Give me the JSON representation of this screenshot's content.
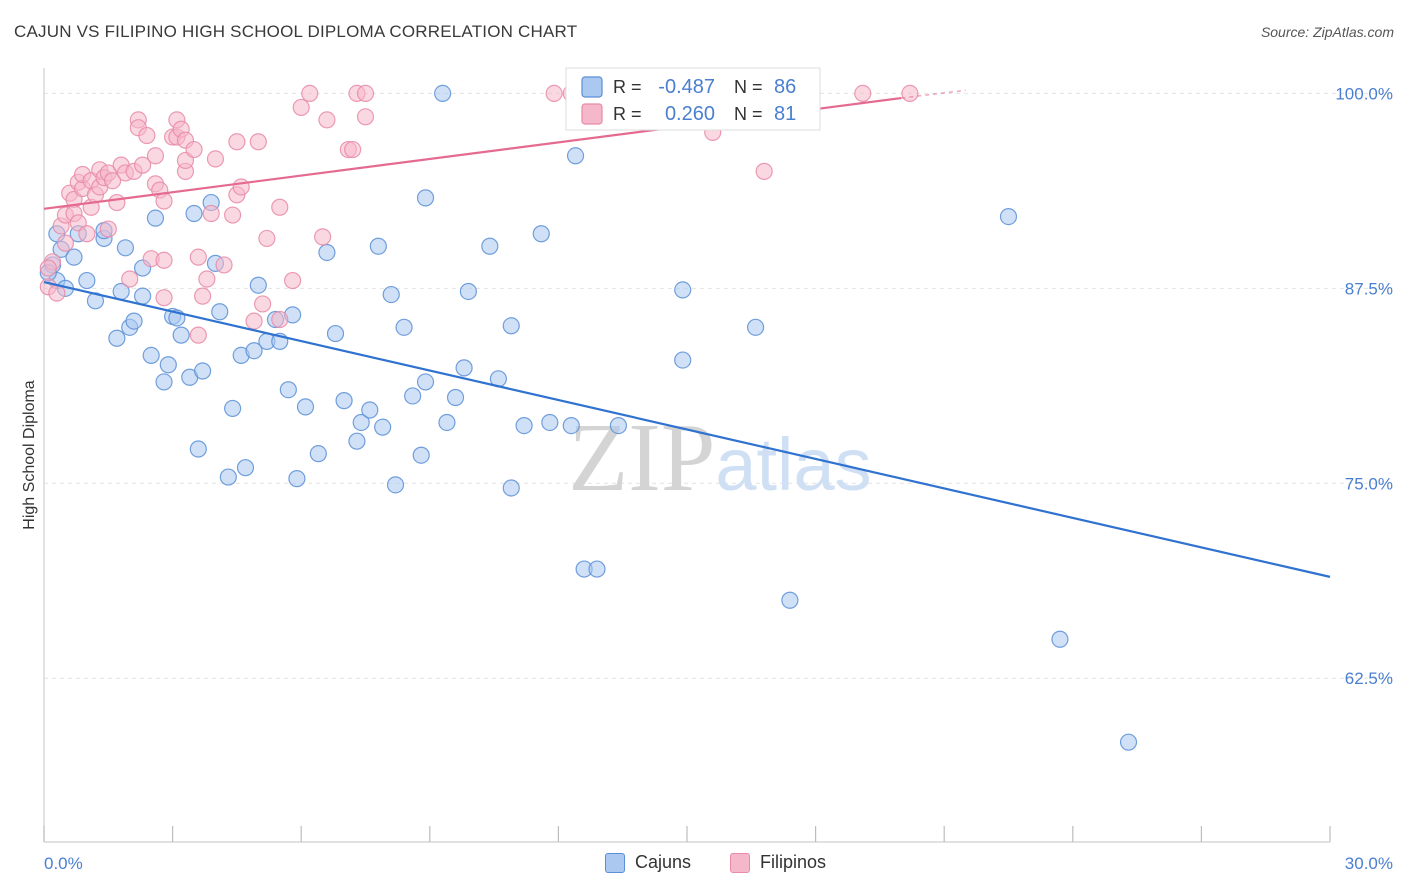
{
  "chart_data": {
    "type": "scatter",
    "title": "CAJUN VS FILIPINO HIGH SCHOOL DIPLOMA CORRELATION CHART",
    "source": "Source: ZipAtlas.com",
    "xlabel": "",
    "ylabel": "High School Diploma",
    "xlim": [
      0,
      30
    ],
    "ylim": [
      52.0,
      101.5
    ],
    "x_tick_labels": [
      "0.0%",
      "30.0%"
    ],
    "y_ticks": [
      62.5,
      75.0,
      87.5,
      100.0
    ],
    "y_tick_labels": [
      "62.5%",
      "75.0%",
      "87.5%",
      "100.0%"
    ],
    "watermark": "ZIPatlas",
    "legend": {
      "r_label": "R =",
      "n_label": "N =",
      "rows": [
        {
          "r": "-0.487",
          "n": "86"
        },
        {
          "r": "0.260",
          "n": "81"
        }
      ]
    },
    "colors": {
      "cajun_fill": "#aac8f0",
      "cajun_stroke": "#5a8fd6",
      "cajun_line": "#2f72cf",
      "filipino_fill": "#f5b8cb",
      "filipino_stroke": "#e88aa8",
      "filipino_line": "#e46a90",
      "tick_label": "#4a7fd0",
      "grid": "#e2e2e2"
    },
    "series": [
      {
        "name": "Cajuns",
        "trend": {
          "x0": 0.0,
          "y0": 87.9,
          "x1": 30.0,
          "y1": 69.0
        },
        "points": [
          [
            0.2,
            89.0
          ],
          [
            0.3,
            91.0
          ],
          [
            0.3,
            88.0
          ],
          [
            0.4,
            90.0
          ],
          [
            0.5,
            87.5
          ],
          [
            0.7,
            89.5
          ],
          [
            0.8,
            91.0
          ],
          [
            1.0,
            88.0
          ],
          [
            1.2,
            86.7
          ],
          [
            1.4,
            90.7
          ],
          [
            1.4,
            91.2
          ],
          [
            1.7,
            84.3
          ],
          [
            1.8,
            87.3
          ],
          [
            1.9,
            90.1
          ],
          [
            2.0,
            85.0
          ],
          [
            2.1,
            85.4
          ],
          [
            2.3,
            88.8
          ],
          [
            2.3,
            87.0
          ],
          [
            2.5,
            83.2
          ],
          [
            2.6,
            92.0
          ],
          [
            2.8,
            81.5
          ],
          [
            2.9,
            82.6
          ],
          [
            3.0,
            85.7
          ],
          [
            3.1,
            85.6
          ],
          [
            3.2,
            84.5
          ],
          [
            3.4,
            81.8
          ],
          [
            3.5,
            92.3
          ],
          [
            3.6,
            77.2
          ],
          [
            3.7,
            82.2
          ],
          [
            3.9,
            93.0
          ],
          [
            4.0,
            89.1
          ],
          [
            4.1,
            86.0
          ],
          [
            4.3,
            75.4
          ],
          [
            4.4,
            79.8
          ],
          [
            4.6,
            83.2
          ],
          [
            4.7,
            76.0
          ],
          [
            4.9,
            83.5
          ],
          [
            5.0,
            87.7
          ],
          [
            5.2,
            84.1
          ],
          [
            5.4,
            85.5
          ],
          [
            5.5,
            84.1
          ],
          [
            5.7,
            81.0
          ],
          [
            5.8,
            85.8
          ],
          [
            5.9,
            75.3
          ],
          [
            6.1,
            79.9
          ],
          [
            6.4,
            76.9
          ],
          [
            6.6,
            89.8
          ],
          [
            6.8,
            84.6
          ],
          [
            7.0,
            80.3
          ],
          [
            7.3,
            77.7
          ],
          [
            7.4,
            78.9
          ],
          [
            7.6,
            79.7
          ],
          [
            7.8,
            90.2
          ],
          [
            7.9,
            78.6
          ],
          [
            8.1,
            87.1
          ],
          [
            8.2,
            74.9
          ],
          [
            8.4,
            85.0
          ],
          [
            8.6,
            80.6
          ],
          [
            8.8,
            76.8
          ],
          [
            8.9,
            93.3
          ],
          [
            8.9,
            81.5
          ],
          [
            9.3,
            100.0
          ],
          [
            9.4,
            78.9
          ],
          [
            9.6,
            80.5
          ],
          [
            9.8,
            82.4
          ],
          [
            9.9,
            87.3
          ],
          [
            10.4,
            90.2
          ],
          [
            10.6,
            81.7
          ],
          [
            10.9,
            85.1
          ],
          [
            10.9,
            74.7
          ],
          [
            11.2,
            78.7
          ],
          [
            11.6,
            91.0
          ],
          [
            11.8,
            78.9
          ],
          [
            12.3,
            78.7
          ],
          [
            12.4,
            96.0
          ],
          [
            12.6,
            69.5
          ],
          [
            12.9,
            69.5
          ],
          [
            13.4,
            78.7
          ],
          [
            14.9,
            87.4
          ],
          [
            14.9,
            82.9
          ],
          [
            16.6,
            85.0
          ],
          [
            17.4,
            67.5
          ],
          [
            22.5,
            92.1
          ],
          [
            23.7,
            65.0
          ],
          [
            25.3,
            58.4
          ],
          [
            0.1,
            88.5
          ]
        ]
      },
      {
        "name": "Filipinos",
        "trend": {
          "x0": 0.0,
          "y0": 92.6,
          "x1": 20.0,
          "y1": 99.7
        },
        "trend_dash": {
          "x0": 20.0,
          "y0": 99.7,
          "x1": 21.5,
          "y1": 100.2
        },
        "points": [
          [
            0.1,
            87.6
          ],
          [
            0.2,
            89.2
          ],
          [
            0.3,
            87.2
          ],
          [
            0.4,
            91.5
          ],
          [
            0.5,
            92.2
          ],
          [
            0.5,
            90.4
          ],
          [
            0.6,
            93.6
          ],
          [
            0.7,
            93.2
          ],
          [
            0.7,
            92.3
          ],
          [
            0.8,
            94.3
          ],
          [
            0.8,
            91.7
          ],
          [
            0.9,
            93.9
          ],
          [
            0.9,
            94.8
          ],
          [
            1.0,
            91.0
          ],
          [
            1.1,
            94.4
          ],
          [
            1.1,
            92.7
          ],
          [
            1.2,
            93.5
          ],
          [
            1.3,
            95.1
          ],
          [
            1.3,
            94.0
          ],
          [
            1.4,
            94.6
          ],
          [
            1.5,
            91.3
          ],
          [
            1.5,
            94.9
          ],
          [
            1.6,
            94.4
          ],
          [
            1.7,
            93.0
          ],
          [
            1.8,
            95.4
          ],
          [
            1.9,
            94.9
          ],
          [
            2.0,
            88.1
          ],
          [
            2.1,
            95.0
          ],
          [
            2.2,
            98.3
          ],
          [
            2.2,
            97.8
          ],
          [
            2.3,
            95.4
          ],
          [
            2.4,
            97.3
          ],
          [
            2.5,
            89.4
          ],
          [
            2.6,
            96.0
          ],
          [
            2.6,
            94.2
          ],
          [
            2.7,
            93.8
          ],
          [
            2.8,
            89.3
          ],
          [
            2.8,
            86.9
          ],
          [
            2.8,
            93.1
          ],
          [
            3.0,
            97.2
          ],
          [
            3.1,
            97.2
          ],
          [
            3.1,
            98.3
          ],
          [
            3.2,
            97.7
          ],
          [
            3.3,
            95.0
          ],
          [
            3.3,
            95.7
          ],
          [
            3.3,
            97.0
          ],
          [
            3.5,
            96.4
          ],
          [
            3.6,
            84.5
          ],
          [
            3.6,
            89.5
          ],
          [
            3.7,
            87.0
          ],
          [
            3.8,
            88.1
          ],
          [
            3.9,
            92.3
          ],
          [
            4.0,
            95.8
          ],
          [
            4.2,
            89.0
          ],
          [
            4.4,
            92.2
          ],
          [
            4.5,
            96.9
          ],
          [
            4.5,
            93.5
          ],
          [
            4.6,
            94.0
          ],
          [
            4.9,
            85.4
          ],
          [
            5.0,
            96.9
          ],
          [
            5.1,
            86.5
          ],
          [
            5.2,
            90.7
          ],
          [
            5.5,
            85.5
          ],
          [
            5.5,
            92.7
          ],
          [
            5.8,
            88.0
          ],
          [
            6.0,
            99.1
          ],
          [
            6.2,
            100.0
          ],
          [
            6.5,
            90.8
          ],
          [
            6.6,
            98.3
          ],
          [
            7.1,
            96.4
          ],
          [
            7.2,
            96.4
          ],
          [
            7.3,
            100.0
          ],
          [
            7.5,
            98.5
          ],
          [
            7.5,
            100.0
          ],
          [
            11.9,
            100.0
          ],
          [
            12.3,
            100.0
          ],
          [
            15.6,
            97.5
          ],
          [
            16.8,
            95.0
          ],
          [
            19.1,
            100.0
          ],
          [
            20.2,
            100.0
          ],
          [
            0.1,
            88.8
          ]
        ]
      }
    ]
  }
}
